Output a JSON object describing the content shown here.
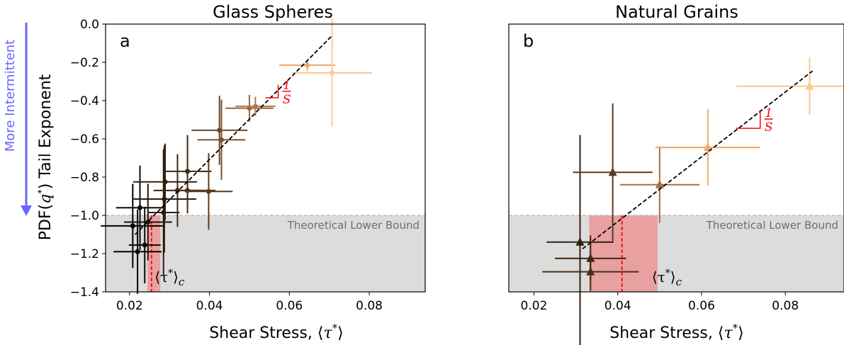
{
  "figure": {
    "side_annotation": "More Intermittent",
    "side_annotation_color": "#6666ff"
  },
  "colors": {
    "bound_shade": "#dcdcdc",
    "bound_line": "#c0c0c0",
    "tc_band": "#e8a0a0",
    "tc_line": "#ff0000",
    "fit_line": "#000000",
    "slope_marker": "#ff0000"
  },
  "chart_data": [
    {
      "type": "scatter",
      "marker": "circle",
      "title": "Glass Spheres",
      "panel_label": "a",
      "xlabel": "Shear Stress, ⟨τ*⟩",
      "ylabel": "PDF(q*) Tail Exponent",
      "xlim": [
        0.014,
        0.094
      ],
      "ylim": [
        -1.4,
        0.0
      ],
      "xticks": [
        0.02,
        0.04,
        0.06,
        0.08
      ],
      "xtick_labels": [
        "0.02",
        "0.04",
        "0.06",
        "0.08"
      ],
      "yticks": [
        0.0,
        -0.2,
        -0.4,
        -0.6,
        -0.8,
        -1.0,
        -1.2,
        -1.4
      ],
      "ytick_labels": [
        "0.0",
        "−0.2",
        "−0.4",
        "−0.6",
        "−0.8",
        "−1.0",
        "−1.2",
        "−1.4"
      ],
      "bound_y": -1.0,
      "bound_label": "Theoretical Lower Bound",
      "tau_c": 0.0255,
      "tau_c_band": [
        0.0245,
        0.0277
      ],
      "tau_c_label": "⟨τ*⟩c",
      "fit_line": {
        "x": [
          0.0214,
          0.0707
        ],
        "y": [
          -1.1,
          -0.06
        ]
      },
      "slope_marker": {
        "x0": 0.054,
        "x1": 0.0572,
        "y": -0.385,
        "label_num": "1",
        "label_den": "S"
      },
      "points": [
        {
          "x": 0.022,
          "y": -1.19,
          "xerr": 0.006,
          "yerr": 0.22,
          "color": "#000000"
        },
        {
          "x": 0.0208,
          "y": -1.055,
          "xerr": 0.008,
          "yerr": 0.22,
          "color": "#000000"
        },
        {
          "x": 0.0226,
          "y": -0.96,
          "xerr": 0.006,
          "yerr": 0.22,
          "color": "#0d0805"
        },
        {
          "x": 0.0238,
          "y": -1.155,
          "xerr": 0.004,
          "yerr": 0.2,
          "color": "#0d0805"
        },
        {
          "x": 0.0246,
          "y": -1.035,
          "xerr": 0.006,
          "yerr": 0.2,
          "color": "#1f1409"
        },
        {
          "x": 0.0285,
          "y": -0.985,
          "xerr": 0.004,
          "yerr": 0.33,
          "color": "#2a1a0e"
        },
        {
          "x": 0.0287,
          "y": -0.915,
          "xerr": 0.008,
          "yerr": 0.28,
          "color": "#2a1a0e"
        },
        {
          "x": 0.0289,
          "y": -0.825,
          "xerr": 0.008,
          "yerr": 0.2,
          "color": "#33200f"
        },
        {
          "x": 0.032,
          "y": -0.87,
          "xerr": 0.006,
          "yerr": 0.19,
          "color": "#3d2613"
        },
        {
          "x": 0.0345,
          "y": -0.77,
          "xerr": 0.006,
          "yerr": 0.19,
          "color": "#3d2613"
        },
        {
          "x": 0.0345,
          "y": -0.87,
          "xerr": 0.007,
          "yerr": 0.12,
          "color": "#4a2e17"
        },
        {
          "x": 0.0398,
          "y": -0.875,
          "xerr": 0.006,
          "yerr": 0.2,
          "color": "#5c3a1d"
        },
        {
          "x": 0.0425,
          "y": -0.555,
          "xerr": 0.007,
          "yerr": 0.18,
          "color": "#6e4526"
        },
        {
          "x": 0.043,
          "y": -0.605,
          "xerr": 0.006,
          "yerr": 0.21,
          "color": "#7a4f2c"
        },
        {
          "x": 0.05,
          "y": -0.44,
          "xerr": 0.006,
          "yerr": 0.07,
          "color": "#9a6540"
        },
        {
          "x": 0.0515,
          "y": -0.43,
          "xerr": 0.005,
          "yerr": 0.05,
          "color": "#b07a4e"
        },
        {
          "x": 0.0645,
          "y": -0.215,
          "xerr": 0.007,
          "yerr": 0.03,
          "color": "#f0a868"
        },
        {
          "x": 0.0707,
          "y": -0.255,
          "xerr": 0.01,
          "yerr": 0.28,
          "color": "#fcc890"
        }
      ]
    },
    {
      "type": "scatter",
      "marker": "triangle",
      "title": "Natural Grains",
      "panel_label": "b",
      "xlabel": "Shear Stress, ⟨τ*⟩",
      "ylabel": "",
      "xlim": [
        0.014,
        0.094
      ],
      "ylim": [
        -1.4,
        0.0
      ],
      "xticks": [
        0.02,
        0.04,
        0.06,
        0.08
      ],
      "xtick_labels": [
        "0.02",
        "0.04",
        "0.06",
        "0.08"
      ],
      "yticks": [],
      "ytick_labels": [],
      "bound_y": -1.0,
      "bound_label": "Theoretical Lower Bound",
      "tau_c": 0.041,
      "tau_c_band": [
        0.0332,
        0.0495
      ],
      "tau_c_label": "⟨τ*⟩c",
      "fit_line": {
        "x": [
          0.0316,
          0.0865
        ],
        "y": [
          -1.175,
          -0.245
        ]
      },
      "slope_marker": {
        "x0": 0.0683,
        "x1": 0.074,
        "y": -0.545,
        "label_num": "1",
        "label_den": "S"
      },
      "points": [
        {
          "x": 0.031,
          "y": -1.14,
          "xerr": 0.008,
          "yerr": 0.56,
          "color": "#33200f"
        },
        {
          "x": 0.0335,
          "y": -1.225,
          "xerr": 0.0085,
          "yerr": 0.12,
          "color": "#3d2613"
        },
        {
          "x": 0.0335,
          "y": -1.295,
          "xerr": 0.0115,
          "yerr": 0.1,
          "color": "#4a2e17"
        },
        {
          "x": 0.0388,
          "y": -0.775,
          "xerr": 0.0095,
          "yerr": 0.36,
          "color": "#5c3a1d"
        },
        {
          "x": 0.05,
          "y": -0.84,
          "xerr": 0.0095,
          "yerr": 0.2,
          "color": "#a86f45"
        },
        {
          "x": 0.0615,
          "y": -0.645,
          "xerr": 0.0125,
          "yerr": 0.2,
          "color": "#f0a868"
        },
        {
          "x": 0.0858,
          "y": -0.325,
          "xerr": 0.0175,
          "yerr": 0.15,
          "color": "#fcc890"
        }
      ]
    }
  ]
}
